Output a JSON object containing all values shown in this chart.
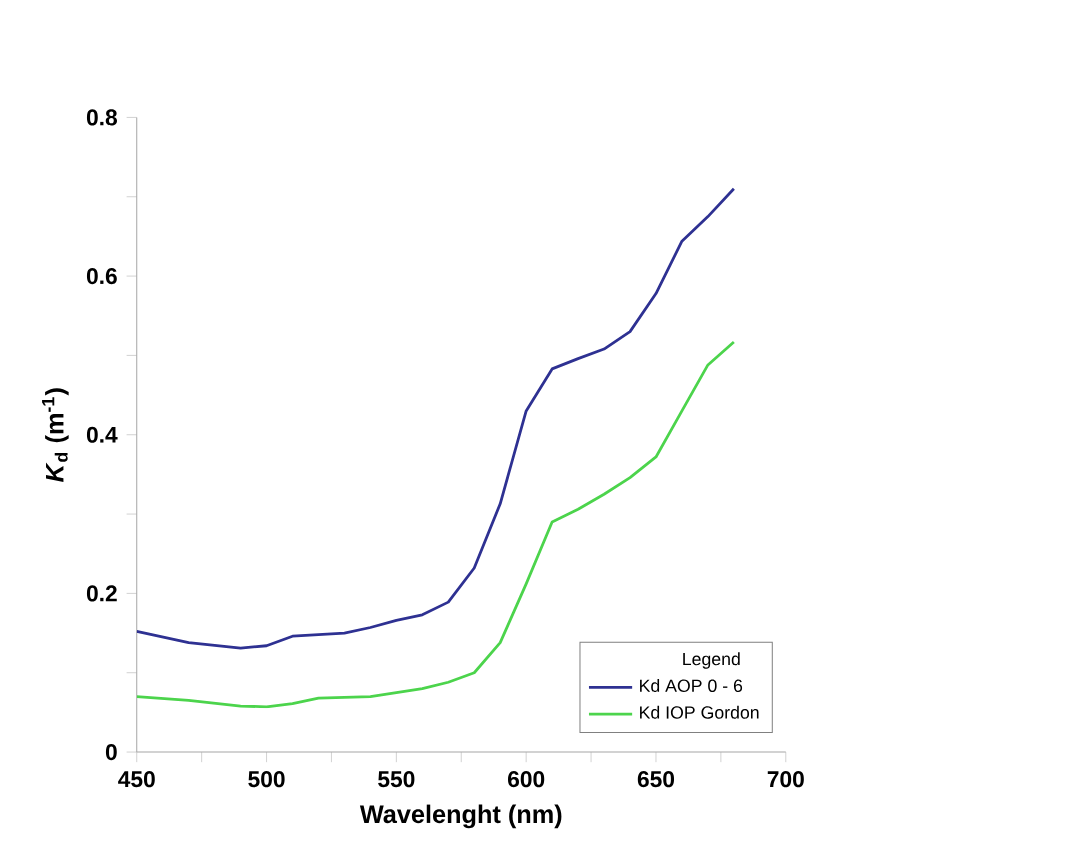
{
  "chart_data": {
    "type": "line",
    "xlabel": "Wavelenght (nm)",
    "ylabel": "*K*$_{d}$ (m$^{-1}$)",
    "legend_title": "Legend",
    "legend": "bottom right",
    "grid": false,
    "xlim": [
      450,
      700
    ],
    "ylim": [
      0,
      0.8
    ],
    "xticks": [
      450,
      {
        "value": 475,
        "label": null
      },
      500,
      {
        "value": 525,
        "label": null
      },
      550,
      {
        "value": 575,
        "label": null
      },
      600,
      {
        "value": 625,
        "label": null
      },
      650,
      {
        "value": 675,
        "label": null
      },
      700
    ],
    "yticks": [
      0,
      {
        "value": 0.1,
        "label": null
      },
      0.2,
      {
        "value": 0.3,
        "label": null
      },
      0.4,
      {
        "value": 0.5,
        "label": null
      },
      0.6,
      {
        "value": 0.7,
        "label": null
      },
      0.8
    ],
    "x": [
      450,
      470,
      490,
      500,
      510,
      520,
      530,
      540,
      550,
      560,
      570,
      580,
      590,
      600,
      610,
      620,
      630,
      640,
      650,
      660,
      670,
      680
    ],
    "series": [
      {
        "name": "Kd AOP 0 - 6",
        "color": "#2e3192",
        "values": [
          0.152,
          0.138,
          0.131,
          0.134,
          0.146,
          0.148,
          0.15,
          0.157,
          0.166,
          0.173,
          0.189,
          0.232,
          0.313,
          0.43,
          0.483,
          0.496,
          0.508,
          0.53,
          0.578,
          0.644,
          0.675,
          0.71
        ]
      },
      {
        "name": "Kd IOP Gordon",
        "color": "#4cd44c",
        "values": [
          0.07,
          0.065,
          0.058,
          0.057,
          0.061,
          0.068,
          0.069,
          0.07,
          0.075,
          0.08,
          0.088,
          0.1,
          0.138,
          0.212,
          0.29,
          0.306,
          0.325,
          0.346,
          0.372,
          0.43,
          0.488,
          0.517
        ]
      }
    ]
  }
}
